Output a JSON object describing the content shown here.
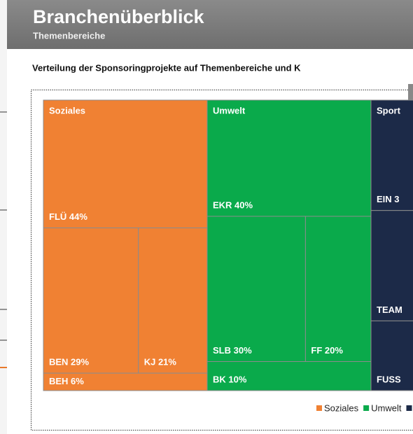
{
  "header": {
    "title": "Branchenüberblick",
    "subtitle": "Themenbereiche"
  },
  "chart_data": {
    "type": "treemap",
    "title": "Verteilung der Sponsoringprojekte auf Themenbereiche und K",
    "series": [
      {
        "name": "Soziales",
        "color": "#f08133",
        "values": [
          44,
          29,
          21,
          6
        ],
        "value_labels": [
          "FLÜ 44%",
          "BEN 29%",
          "KJ 21%",
          "BEH 6%"
        ]
      },
      {
        "name": "Umwelt",
        "color": "#0aaa4b",
        "values": [
          40,
          30,
          20,
          10
        ],
        "value_labels": [
          "EKR 40%",
          "SLB 30%",
          "FF 20%",
          "BK 10%"
        ]
      },
      {
        "name": "Sport",
        "color": "#1c2a48",
        "values": [
          38,
          38,
          24
        ],
        "value_labels": [
          "EIN 3",
          "TEAM",
          "FUSS"
        ]
      }
    ]
  }
}
